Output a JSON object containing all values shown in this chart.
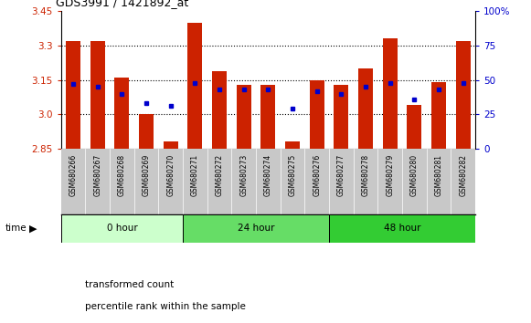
{
  "title": "GDS3991 / 1421892_at",
  "samples": [
    "GSM680266",
    "GSM680267",
    "GSM680268",
    "GSM680269",
    "GSM680270",
    "GSM680271",
    "GSM680272",
    "GSM680273",
    "GSM680274",
    "GSM680275",
    "GSM680276",
    "GSM680277",
    "GSM680278",
    "GSM680279",
    "GSM680280",
    "GSM680281",
    "GSM680282"
  ],
  "transformed_count": [
    3.32,
    3.32,
    3.16,
    3.0,
    2.88,
    3.4,
    3.19,
    3.13,
    3.13,
    2.88,
    3.15,
    3.13,
    3.2,
    3.33,
    3.04,
    3.14,
    3.32
  ],
  "percentile_rank": [
    47,
    45,
    40,
    33,
    31,
    48,
    43,
    43,
    43,
    29,
    42,
    40,
    45,
    48,
    36,
    43,
    48
  ],
  "baseline": 2.85,
  "ylim_left": [
    2.85,
    3.45
  ],
  "ylim_right": [
    0,
    100
  ],
  "yticks_left": [
    2.85,
    3.0,
    3.15,
    3.3,
    3.45
  ],
  "yticks_right": [
    0,
    25,
    50,
    75,
    100
  ],
  "groups": [
    {
      "label": "0 hour",
      "indices": [
        0,
        1,
        2,
        3,
        4
      ],
      "color": "#ccffcc"
    },
    {
      "label": "24 hour",
      "indices": [
        5,
        6,
        7,
        8,
        9,
        10
      ],
      "color": "#66dd66"
    },
    {
      "label": "48 hour",
      "indices": [
        11,
        12,
        13,
        14,
        15,
        16
      ],
      "color": "#33cc33"
    }
  ],
  "bar_color": "#cc2200",
  "dot_color": "#0000cc",
  "grid_color": "#000000",
  "sample_label_bg": "#c8c8c8",
  "plot_bg": "#ffffff",
  "left_tick_color": "#cc2200",
  "right_tick_color": "#0000cc",
  "bar_width": 0.6
}
